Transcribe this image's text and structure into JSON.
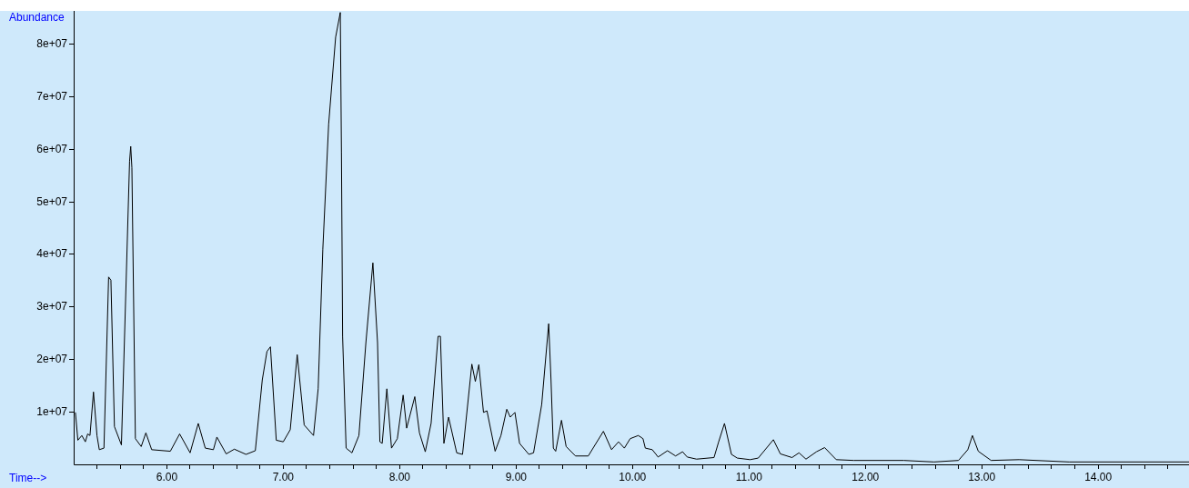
{
  "chart_data": {
    "type": "line",
    "xlabel": "Time-->",
    "ylabel": "Abundance",
    "xlim": [
      5.2,
      14.78
    ],
    "ylim": [
      0,
      86400000
    ],
    "xticks": [
      {
        "value": 5.4,
        "label": null
      },
      {
        "value": 5.6,
        "label": null
      },
      {
        "value": 5.8,
        "label": null
      },
      {
        "value": 6,
        "label": "6.00"
      },
      {
        "value": 6.2,
        "label": null
      },
      {
        "value": 6.4,
        "label": null
      },
      {
        "value": 6.6,
        "label": null
      },
      {
        "value": 6.8,
        "label": null
      },
      {
        "value": 7,
        "label": "7.00"
      },
      {
        "value": 7.2,
        "label": null
      },
      {
        "value": 7.4,
        "label": null
      },
      {
        "value": 7.6,
        "label": null
      },
      {
        "value": 7.8,
        "label": null
      },
      {
        "value": 8,
        "label": "8.00"
      },
      {
        "value": 8.2,
        "label": null
      },
      {
        "value": 8.4,
        "label": null
      },
      {
        "value": 8.6,
        "label": null
      },
      {
        "value": 8.8,
        "label": null
      },
      {
        "value": 9,
        "label": "9.00"
      },
      {
        "value": 9.2,
        "label": null
      },
      {
        "value": 9.4,
        "label": null
      },
      {
        "value": 9.6,
        "label": null
      },
      {
        "value": 9.8,
        "label": null
      },
      {
        "value": 10,
        "label": "10.00"
      },
      {
        "value": 10.2,
        "label": null
      },
      {
        "value": 10.4,
        "label": null
      },
      {
        "value": 10.6,
        "label": null
      },
      {
        "value": 10.8,
        "label": null
      },
      {
        "value": 11,
        "label": "11.00"
      },
      {
        "value": 11.2,
        "label": null
      },
      {
        "value": 11.4,
        "label": null
      },
      {
        "value": 11.6,
        "label": null
      },
      {
        "value": 11.8,
        "label": null
      },
      {
        "value": 12,
        "label": "12.00"
      },
      {
        "value": 12.2,
        "label": null
      },
      {
        "value": 12.4,
        "label": null
      },
      {
        "value": 12.6,
        "label": null
      },
      {
        "value": 12.8,
        "label": null
      },
      {
        "value": 13,
        "label": "13.00"
      },
      {
        "value": 13.2,
        "label": null
      },
      {
        "value": 13.4,
        "label": null
      },
      {
        "value": 13.6,
        "label": null
      },
      {
        "value": 13.8,
        "label": null
      },
      {
        "value": 14,
        "label": "14.00"
      },
      {
        "value": 14.2,
        "label": null
      },
      {
        "value": 14.4,
        "label": null
      },
      {
        "value": 14.6,
        "label": null
      }
    ],
    "yticks": [
      {
        "value": 10000000,
        "label": "1e+07"
      },
      {
        "value": 20000000,
        "label": "2e+07"
      },
      {
        "value": 30000000,
        "label": "3e+07"
      },
      {
        "value": 40000000,
        "label": "4e+07"
      },
      {
        "value": 50000000,
        "label": "5e+07"
      },
      {
        "value": 60000000,
        "label": "6e+07"
      },
      {
        "value": 70000000,
        "label": "7e+07"
      },
      {
        "value": 80000000,
        "label": "8e+07"
      }
    ],
    "marker": "none",
    "legend": false,
    "x": [
      5.215,
      5.236,
      5.27,
      5.3,
      5.32,
      5.34,
      5.37,
      5.4,
      5.42,
      5.46,
      5.5,
      5.52,
      5.55,
      5.61,
      5.68,
      5.69,
      5.7,
      5.73,
      5.78,
      5.82,
      5.87,
      6.03,
      6.11,
      6.2,
      6.27,
      6.33,
      6.4,
      6.43,
      6.51,
      6.58,
      6.68,
      6.76,
      6.82,
      6.86,
      6.89,
      6.94,
      7.0,
      7.06,
      7.12,
      7.18,
      7.26,
      7.3,
      7.34,
      7.39,
      7.45,
      7.49,
      7.5,
      7.51,
      7.54,
      7.59,
      7.65,
      7.71,
      7.77,
      7.81,
      7.83,
      7.85,
      7.89,
      7.93,
      7.98,
      8.03,
      8.06,
      8.13,
      8.17,
      8.22,
      8.27,
      8.33,
      8.35,
      8.38,
      8.42,
      8.49,
      8.54,
      8.62,
      8.65,
      8.68,
      8.72,
      8.75,
      8.82,
      8.87,
      8.92,
      8.95,
      8.99,
      9.03,
      9.11,
      9.15,
      9.22,
      9.28,
      9.3,
      9.32,
      9.34,
      9.39,
      9.43,
      9.51,
      9.62,
      9.75,
      9.82,
      9.88,
      9.93,
      9.98,
      10.05,
      10.09,
      10.11,
      10.17,
      10.22,
      10.3,
      10.37,
      10.43,
      10.47,
      10.55,
      10.7,
      10.74,
      10.79,
      10.85,
      10.9,
      11.01,
      11.08,
      11.21,
      11.27,
      11.37,
      11.43,
      11.49,
      11.58,
      11.65,
      11.75,
      11.9,
      12.33,
      12.59,
      12.8,
      12.88,
      12.92,
      12.97,
      13.08,
      13.32,
      13.75,
      14.78
    ],
    "series": [
      {
        "color": "#000000",
        "values": [
          9900000,
          4600000,
          5500000,
          4300000,
          5800000,
          5500000,
          13800000,
          5500000,
          2800000,
          3100000,
          35700000,
          35100000,
          7200000,
          3700000,
          57700000,
          60600000,
          56500000,
          4900000,
          3400000,
          6000000,
          2800000,
          2500000,
          5800000,
          2200000,
          7800000,
          3100000,
          2800000,
          5200000,
          2000000,
          2900000,
          1900000,
          2600000,
          16100000,
          21500000,
          22400000,
          4600000,
          4300000,
          6600000,
          20900000,
          7500000,
          5500000,
          14400000,
          41000000,
          64800000,
          81400000,
          86100000,
          59400000,
          24400000,
          3100000,
          2200000,
          5500000,
          23200000,
          38400000,
          23200000,
          4300000,
          4000000,
          14400000,
          3100000,
          4900000,
          13200000,
          6900000,
          12900000,
          6000000,
          2400000,
          7800000,
          24400000,
          24400000,
          4000000,
          9000000,
          2200000,
          1900000,
          19100000,
          15800000,
          19000000,
          9900000,
          10200000,
          2500000,
          5500000,
          10500000,
          9000000,
          9900000,
          4000000,
          1900000,
          2200000,
          11400000,
          26800000,
          16100000,
          3100000,
          2500000,
          8400000,
          3400000,
          1600000,
          1600000,
          6300000,
          2800000,
          4300000,
          3100000,
          4900000,
          5500000,
          4900000,
          3100000,
          2800000,
          1400000,
          2600000,
          1600000,
          2400000,
          1400000,
          1000000,
          1300000,
          4300000,
          7800000,
          1900000,
          1200000,
          900000,
          1200000,
          4700000,
          2000000,
          1300000,
          2200000,
          1000000,
          2400000,
          3200000,
          900000,
          750000,
          750000,
          460000,
          750000,
          2800000,
          5500000,
          2500000,
          750000,
          900000,
          460000,
          460000
        ]
      }
    ]
  }
}
